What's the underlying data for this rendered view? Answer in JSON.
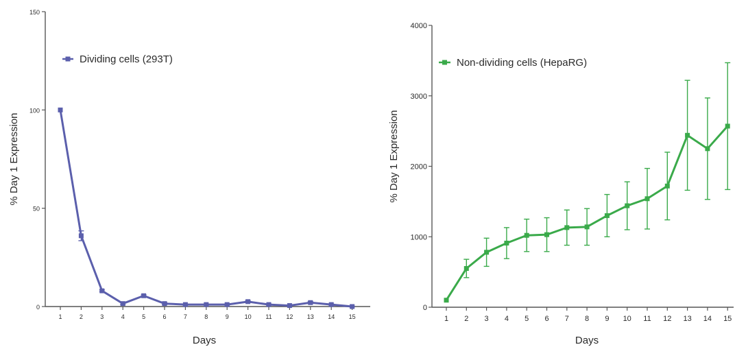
{
  "chart_data": [
    {
      "type": "line",
      "x": [
        1,
        2,
        3,
        4,
        5,
        6,
        7,
        8,
        9,
        10,
        11,
        12,
        13,
        14,
        15
      ],
      "series": [
        {
          "name": "Dividing cells (293T)",
          "color": "#5b5fac",
          "marker": "square",
          "values": [
            100,
            36,
            8,
            1.5,
            5.5,
            1.5,
            1,
            1,
            1,
            2.5,
            1,
            0.5,
            2,
            1,
            0
          ],
          "error": [
            0,
            2.5,
            0.5,
            0.5,
            0.5,
            0.5,
            0.3,
            0.3,
            0.3,
            0.5,
            0.3,
            0.2,
            0.5,
            0.3,
            0.2
          ]
        }
      ],
      "xlabel": "Days",
      "ylabel": "% Day 1 Expression",
      "xticks": [
        "1",
        "2",
        "3",
        "4",
        "5",
        "6",
        "7",
        "8",
        "9",
        "10",
        "11",
        "12",
        "13",
        "14",
        "15"
      ],
      "yticks": [
        "0",
        "50",
        "100",
        "150"
      ],
      "ylim": [
        0,
        150
      ],
      "legend_position": "top-left",
      "grid": false
    },
    {
      "type": "line",
      "x": [
        1,
        2,
        3,
        4,
        5,
        6,
        7,
        8,
        9,
        10,
        11,
        12,
        13,
        14,
        15
      ],
      "series": [
        {
          "name": "Non-dividing cells (HepaRG)",
          "color": "#3aaa4a",
          "marker": "square",
          "values": [
            100,
            550,
            780,
            910,
            1020,
            1030,
            1130,
            1140,
            1300,
            1440,
            1540,
            1720,
            2440,
            2250,
            2570
          ],
          "error": [
            0,
            130,
            200,
            220,
            230,
            240,
            250,
            260,
            300,
            340,
            430,
            480,
            780,
            720,
            900
          ]
        }
      ],
      "xlabel": "Days",
      "ylabel": "% Day 1 Expression",
      "xticks": [
        "1",
        "2",
        "3",
        "4",
        "5",
        "6",
        "7",
        "8",
        "9",
        "10",
        "11",
        "12",
        "13",
        "14",
        "15"
      ],
      "yticks": [
        "0",
        "1000",
        "2000",
        "3000",
        "4000"
      ],
      "ylim": [
        0,
        4000
      ],
      "legend_position": "top-left",
      "grid": false
    }
  ]
}
